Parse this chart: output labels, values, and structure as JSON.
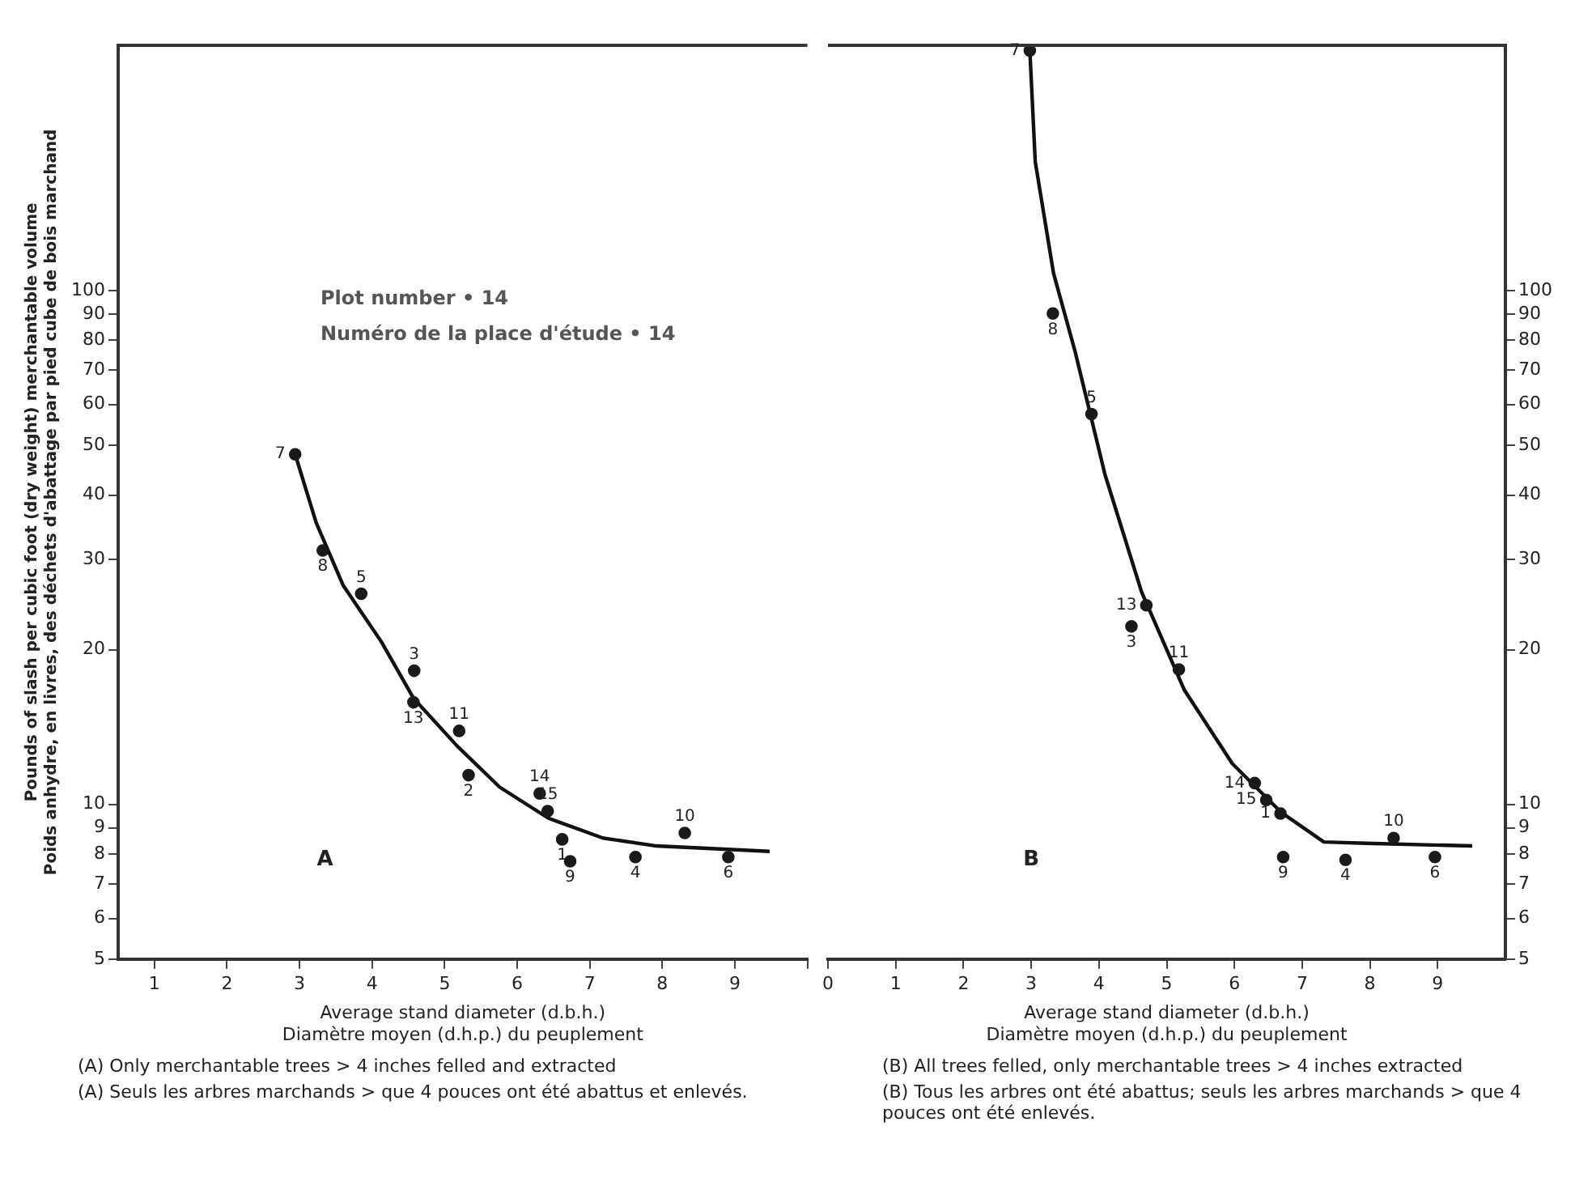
{
  "chart_data": [
    {
      "type": "scatter",
      "title": "A",
      "subtitle": "Plot number • 14\nNuméro de la place d'étude • 14",
      "xlabel": "Average stand diameter (d.b.h.)\nDiamètre moyen (d.h.p.) du peuplement",
      "ylabel": "Pounds of slash per cubic foot (dry weight) merchantable volume\nPoids anhydre, en livres, des déchets d'abattage par pied cube de bois marchand",
      "xlim": [
        0.5,
        10
      ],
      "xticks": [
        1,
        2,
        3,
        4,
        5,
        6,
        7,
        8,
        9,
        {
          "value": 10,
          "label": null
        }
      ],
      "ylim": [
        5,
        300
      ],
      "yticks": [
        5,
        6,
        7,
        8,
        9,
        10,
        20,
        30,
        40,
        50,
        60,
        70,
        80,
        90,
        100
      ],
      "log": true,
      "series": [
        {
          "type": "scatter",
          "marker": "circle",
          "color": "#1a1a1a",
          "x": [
            2.94,
            3.32,
            3.85,
            4.58,
            4.57,
            5.2,
            5.33,
            6.31,
            6.42,
            6.62,
            6.73,
            7.63,
            8.31,
            8.91
          ],
          "values": [
            48,
            31.2,
            25.7,
            18.2,
            15.8,
            13.9,
            11.4,
            10.5,
            9.7,
            8.55,
            7.75,
            7.9,
            8.8,
            7.9
          ]
        },
        {
          "type": "line",
          "marker": "none",
          "color": "#111111",
          "x": [
            2.94,
            3.23,
            3.6,
            4.13,
            4.57,
            5.17,
            5.76,
            6.43,
            7.18,
            7.92,
            9.48
          ],
          "values": [
            48,
            35.3,
            26.7,
            20.7,
            16.1,
            13,
            10.8,
            9.4,
            8.6,
            8.3,
            8.1
          ]
        }
      ],
      "annotations": [
        {
          "text": "7",
          "x": 2.94,
          "y": 48
        },
        {
          "text": "8",
          "x": 3.32,
          "y": 31.2
        },
        {
          "text": "5",
          "x": 3.85,
          "y": 25.7
        },
        {
          "text": "3",
          "x": 4.58,
          "y": 18.2
        },
        {
          "text": "13",
          "x": 4.57,
          "y": 15.8
        },
        {
          "text": "11",
          "x": 5.2,
          "y": 13.9
        },
        {
          "text": "2",
          "x": 5.33,
          "y": 11.4
        },
        {
          "text": "14",
          "x": 6.31,
          "y": 10.5
        },
        {
          "text": "15",
          "x": 6.42,
          "y": 9.7
        },
        {
          "text": "1",
          "x": 6.62,
          "y": 8.55
        },
        {
          "text": "9",
          "x": 6.73,
          "y": 7.75
        },
        {
          "text": "4",
          "x": 7.63,
          "y": 7.9
        },
        {
          "text": "10",
          "x": 8.31,
          "y": 8.8
        },
        {
          "text": "6",
          "x": 8.91,
          "y": 7.9
        },
        "(A) Only merchantable trees > 4 inches felled and extracted",
        "(A) Seuls les arbres marchands > que 4 pouces ont été abattus et enlevés."
      ]
    },
    {
      "type": "scatter",
      "title": "B",
      "xlabel": "Average stand diameter (d.b.h.)\nDiamètre moyen (d.h.p.) du peuplement",
      "xlim": [
        0,
        10
      ],
      "xticks": [
        0,
        1,
        2,
        3,
        4,
        5,
        6,
        7,
        8,
        9
      ],
      "ylim": [
        5,
        300
      ],
      "yticks": [
        5,
        6,
        7,
        8,
        9,
        10,
        20,
        30,
        40,
        50,
        60,
        70,
        80,
        90,
        100
      ],
      "log": true,
      "series": [
        {
          "type": "scatter",
          "marker": "circle",
          "color": "#1a1a1a",
          "x": [
            2.98,
            3.32,
            3.89,
            4.7,
            4.48,
            5.18,
            6.3,
            6.47,
            6.68,
            6.72,
            7.64,
            8.35,
            8.96
          ],
          "values": [
            293,
            90.2,
            57.5,
            24.4,
            22.2,
            18.3,
            11,
            10.2,
            9.6,
            7.9,
            7.8,
            8.6,
            7.9
          ]
        },
        {
          "type": "line",
          "marker": "none",
          "color": "#111111",
          "x": [
            2.98,
            3.06,
            3.33,
            3.65,
            4.09,
            4.63,
            5.26,
            5.97,
            6.69,
            7.32,
            7.94,
            9.51
          ],
          "values": [
            293,
            178,
            108,
            75.9,
            43.8,
            25.9,
            16.7,
            12,
            9.65,
            8.45,
            8.4,
            8.3
          ]
        }
      ],
      "annotations": [
        {
          "text": "7",
          "x": 2.98,
          "y": 293
        },
        {
          "text": "8",
          "x": 3.32,
          "y": 90.2
        },
        {
          "text": "5",
          "x": 3.89,
          "y": 57.5
        },
        {
          "text": "13",
          "x": 4.7,
          "y": 24.4
        },
        {
          "text": "3",
          "x": 4.48,
          "y": 22.2
        },
        {
          "text": "11",
          "x": 5.18,
          "y": 18.3
        },
        {
          "text": "14",
          "x": 6.3,
          "y": 11
        },
        {
          "text": "15",
          "x": 6.47,
          "y": 10.2
        },
        {
          "text": "1",
          "x": 6.68,
          "y": 9.6
        },
        {
          "text": "9",
          "x": 6.72,
          "y": 7.9
        },
        {
          "text": "4",
          "x": 7.64,
          "y": 7.8
        },
        {
          "text": "10",
          "x": 8.35,
          "y": 8.6
        },
        {
          "text": "6",
          "x": 8.96,
          "y": 7.9
        },
        "(B) All trees felled, only merchantable trees > 4 inches extracted",
        "(B) Tous les arbres ont été abattus; seuls les arbres marchands > que 4 pouces ont été enlevés."
      ]
    }
  ]
}
